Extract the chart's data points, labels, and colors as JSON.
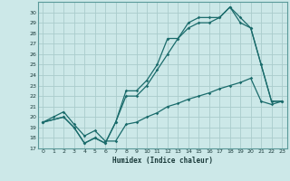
{
  "xlabel": "Humidex (Indice chaleur)",
  "bg_color": "#cce8e8",
  "grid_color": "#aacccc",
  "line_color": "#1a6b6b",
  "xlim": [
    -0.5,
    23.5
  ],
  "ylim": [
    17,
    31
  ],
  "yticks": [
    17,
    18,
    19,
    20,
    21,
    22,
    23,
    24,
    25,
    26,
    27,
    28,
    29,
    30
  ],
  "xticks": [
    0,
    1,
    2,
    3,
    4,
    5,
    6,
    7,
    8,
    9,
    10,
    11,
    12,
    13,
    14,
    15,
    16,
    17,
    18,
    19,
    20,
    21,
    22,
    23
  ],
  "line1_x": [
    0,
    1,
    2,
    3,
    4,
    5,
    6,
    7,
    8,
    9,
    10,
    11,
    12,
    13,
    14,
    15,
    16,
    17,
    18,
    19,
    20,
    21,
    22,
    23
  ],
  "line1_y": [
    19.5,
    20.0,
    20.5,
    19.3,
    18.2,
    18.7,
    17.7,
    17.7,
    19.3,
    19.5,
    20.0,
    20.4,
    21.0,
    21.3,
    21.7,
    22.0,
    22.3,
    22.7,
    23.0,
    23.3,
    23.7,
    21.5,
    21.2,
    21.5
  ],
  "line2_x": [
    0,
    2,
    3,
    4,
    5,
    6,
    7,
    8,
    9,
    10,
    11,
    12,
    13,
    14,
    15,
    16,
    17,
    18,
    19,
    20,
    21,
    22,
    23
  ],
  "line2_y": [
    19.5,
    20.0,
    19.0,
    17.5,
    18.0,
    17.5,
    19.5,
    22.5,
    22.5,
    23.5,
    25.0,
    27.5,
    27.5,
    29.0,
    29.5,
    29.5,
    29.5,
    30.5,
    29.5,
    28.5,
    25.0,
    21.5,
    21.5
  ],
  "line3_x": [
    0,
    2,
    3,
    4,
    5,
    6,
    7,
    8,
    9,
    10,
    11,
    12,
    13,
    14,
    15,
    16,
    17,
    18,
    19,
    20,
    21,
    22,
    23
  ],
  "line3_y": [
    19.5,
    20.0,
    19.0,
    17.5,
    18.0,
    17.5,
    19.5,
    22.0,
    22.0,
    23.0,
    24.5,
    26.0,
    27.5,
    28.5,
    29.0,
    29.0,
    29.5,
    30.5,
    29.0,
    28.5,
    25.0,
    21.5,
    21.5
  ]
}
